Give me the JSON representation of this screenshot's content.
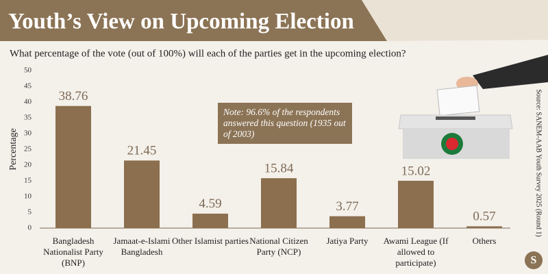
{
  "chart_data": {
    "type": "bar",
    "title": "Youth’s View on Upcoming Election",
    "subtitle": "What percentage of the vote (out of 100%) will each of the parties get in the upcoming election?",
    "y_label": "Percentage",
    "categories": [
      "Bangladesh Nationalist Party (BNP)",
      "Jamaat-e-Islami Bangladesh",
      "Other Islamist parties",
      "National Citizen Party (NCP)",
      "Jatiya Party",
      "Awami League (If allowed to participate)",
      "Others"
    ],
    "values": [
      38.76,
      21.45,
      4.59,
      15.84,
      3.77,
      15.02,
      0.57
    ],
    "color": "#8b6f4e",
    "ylim": [
      0,
      50
    ],
    "yticks": [
      0,
      5,
      10,
      15,
      20,
      25,
      30,
      35,
      40,
      45,
      50
    ],
    "grid": false,
    "annotation": "Note: 96.6% of the respondents answered this question (1935 out of 2003)",
    "source": "Source: SANEM-AAB Youth Survey 2025 (Round 1)",
    "logo": "S"
  }
}
